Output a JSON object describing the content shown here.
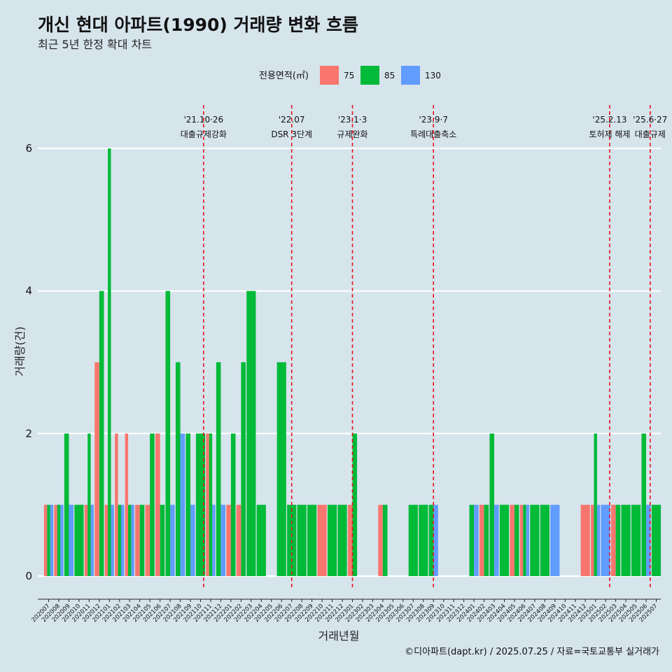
{
  "chart_data": {
    "type": "bar",
    "title": "개신 현대 아파트(1990) 거래량 변화 흐름",
    "subtitle": "최근 5년 한정 확대 차트",
    "xlabel": "거래년월",
    "ylabel": "거래량(건)",
    "ylim": [
      0,
      6
    ],
    "yticks": [
      0,
      2,
      4,
      6
    ],
    "grid": true,
    "legend": {
      "title": "전용면적(㎡)",
      "position": "top"
    },
    "categories": [
      "202007",
      "202008",
      "202009",
      "202010",
      "202011",
      "202012",
      "202101",
      "202102",
      "202103",
      "202104",
      "202105",
      "202106",
      "202107",
      "202108",
      "202109",
      "202110",
      "202111",
      "202112",
      "202201",
      "202202",
      "202203",
      "202204",
      "202205",
      "202206",
      "202207",
      "202208",
      "202209",
      "202210",
      "202211",
      "202212",
      "202301",
      "202302",
      "202303",
      "202304",
      "202305",
      "202306",
      "202307",
      "202308",
      "202309",
      "202310",
      "202311",
      "202312",
      "202401",
      "202402",
      "202403",
      "202404",
      "202405",
      "202406",
      "202407",
      "202408",
      "202409",
      "202410",
      "202411",
      "202412",
      "202501",
      "202502",
      "202503",
      "202504",
      "202505",
      "202506",
      "202507"
    ],
    "series": [
      {
        "name": "75",
        "color": "#f8766d",
        "values": [
          1,
          1,
          0,
          0,
          1,
          3,
          1,
          2,
          2,
          1,
          1,
          2,
          0,
          0,
          0,
          0,
          2,
          0,
          1,
          1,
          0,
          0,
          0,
          0,
          0,
          0,
          0,
          1,
          0,
          0,
          1,
          0,
          0,
          1,
          0,
          0,
          0,
          0,
          0,
          0,
          0,
          0,
          0,
          1,
          0,
          0,
          1,
          1,
          0,
          0,
          0,
          0,
          0,
          1,
          1,
          0,
          1,
          0,
          0,
          0,
          0
        ]
      },
      {
        "name": "85",
        "color": "#00ba38",
        "values": [
          1,
          1,
          2,
          1,
          2,
          4,
          6,
          1,
          1,
          1,
          2,
          1,
          4,
          3,
          2,
          2,
          2,
          3,
          2,
          3,
          4,
          1,
          0,
          3,
          1,
          1,
          1,
          0,
          1,
          1,
          2,
          0,
          0,
          1,
          0,
          0,
          1,
          1,
          1,
          0,
          0,
          0,
          1,
          1,
          2,
          1,
          1,
          1,
          1,
          1,
          0,
          0,
          0,
          0,
          2,
          0,
          1,
          1,
          1,
          2,
          1
        ]
      },
      {
        "name": "130",
        "color": "#619cff",
        "values": [
          1,
          1,
          1,
          0,
          1,
          0,
          1,
          1,
          1,
          0,
          0,
          0,
          1,
          2,
          1,
          0,
          1,
          1,
          0,
          0,
          0,
          0,
          0,
          0,
          0,
          0,
          0,
          0,
          0,
          0,
          0,
          0,
          0,
          0,
          0,
          0,
          0,
          0,
          1,
          0,
          0,
          0,
          1,
          0,
          1,
          0,
          0,
          1,
          0,
          0,
          1,
          0,
          0,
          0,
          1,
          1,
          0,
          0,
          0,
          1,
          0
        ]
      }
    ],
    "events": [
      {
        "date": "'21.10·26",
        "label": "대출규제강화",
        "position": 15.3
      },
      {
        "date": "'22.07",
        "label": "DSR 3단계",
        "position": 24
      },
      {
        "date": "'23.1·3",
        "label": "규제완화",
        "position": 30
      },
      {
        "date": "'23.9·7",
        "label": "특례대출축소",
        "position": 38
      },
      {
        "date": "'25.2.13",
        "label": "토허제 해제",
        "position": 55.4
      },
      {
        "date": "'25.6·27",
        "label": "대출규제",
        "position": 59.4
      }
    ]
  },
  "caption": "©디아파트(dapt.kr) / 2025.07.25 / 자료=국토교통부 실거래가"
}
